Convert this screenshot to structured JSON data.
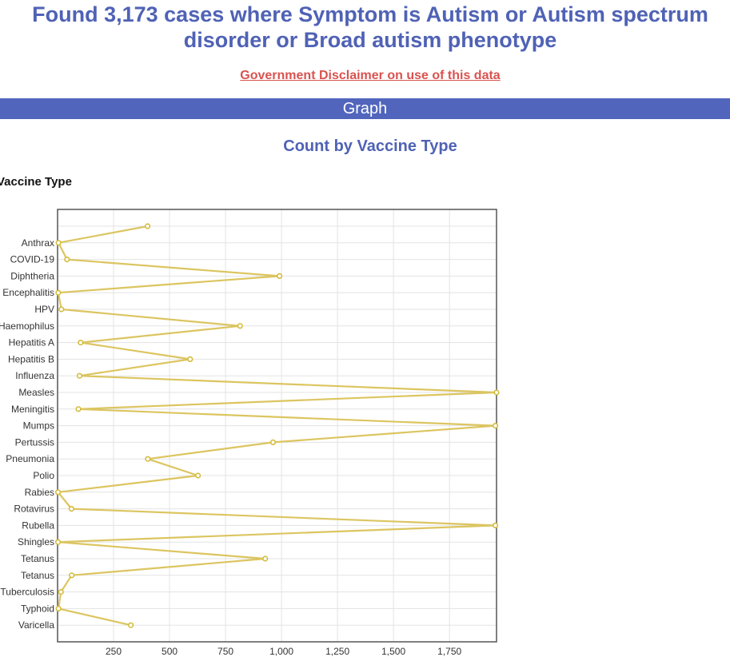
{
  "header": {
    "title": "Found 3,173 cases where Symptom is Autism or Autism spectrum disorder or Broad autism phenotype",
    "disclaimer_link": "Government Disclaimer on use of this data",
    "section_label": "Graph"
  },
  "chart_data": {
    "type": "line",
    "title": "Count by Vaccine Type",
    "ylabel": "Vaccine Type",
    "xlabel": "",
    "orientation": "horizontal",
    "categories": [
      "",
      "Anthrax",
      "COVID-19",
      "Diphtheria",
      "Encephalitis",
      "HPV",
      "Haemophilus",
      "Hepatitis A",
      "Hepatitis B",
      "Influenza",
      "Measles",
      "Meningitis",
      "Mumps",
      "Pertussis",
      "Pneumonia",
      "Polio",
      "Rabies",
      "Rotavirus",
      "Rubella",
      "Shingles",
      "Tetanus",
      "Tetanus",
      "Tuberculosis",
      "Typhoid",
      "Varicella"
    ],
    "values": [
      402,
      4,
      42,
      991,
      3,
      17,
      815,
      103,
      592,
      98,
      1960,
      93,
      1955,
      962,
      403,
      627,
      2,
      62,
      1955,
      2,
      927,
      63,
      15,
      4,
      327
    ],
    "xticks": [
      250,
      500,
      750,
      1000,
      1250,
      1500,
      1750
    ],
    "xtick_labels": [
      "250",
      "500",
      "750",
      "1,000",
      "1,250",
      "1,500",
      "1,750"
    ],
    "xlim": [
      0,
      1960
    ],
    "grid": true,
    "colors": {
      "line": "#dcc560",
      "marker_edge": "#d4bb3c",
      "marker_fill": "#ffffff",
      "axis": "#555555",
      "grid": "#e3e3e3"
    }
  }
}
